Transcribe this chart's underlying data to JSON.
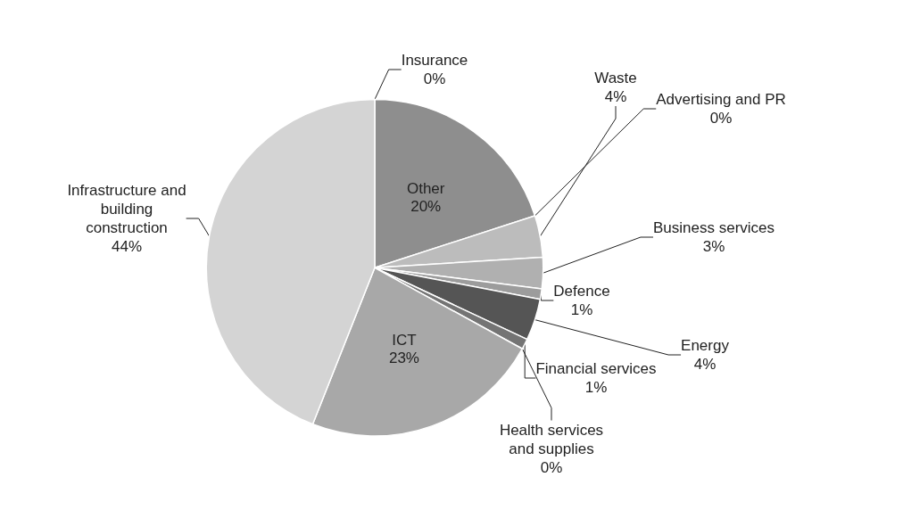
{
  "chart_data": {
    "type": "pie",
    "categories": [
      "Insurance",
      "Other",
      "Advertising and PR",
      "Waste",
      "Business services",
      "Defence",
      "Energy",
      "Financial services",
      "Health services and supplies",
      "ICT",
      "Infrastructure and building construction"
    ],
    "values": [
      0,
      20,
      0,
      4,
      3,
      1,
      4,
      1,
      0,
      23,
      44
    ],
    "colors": [
      "#e6e6e6",
      "#8e8e8e",
      "#dcdcdc",
      "#bcbcbc",
      "#b0b0b0",
      "#9c9c9c",
      "#555555",
      "#747474",
      "#cfcfcf",
      "#a8a8a8",
      "#d4d4d4"
    ],
    "value_labels": [
      "0%",
      "20%",
      "0%",
      "4%",
      "3%",
      "1%",
      "4%",
      "1%",
      "0%",
      "23%",
      "44%"
    ],
    "legend": false
  }
}
